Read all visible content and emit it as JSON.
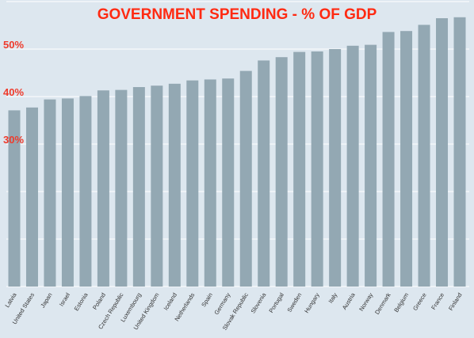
{
  "chart_data": {
    "type": "bar",
    "title": "GOVERNMENT SPENDING - % OF GDP",
    "xlabel": "",
    "ylabel": "",
    "categories": [
      "Latvia",
      "United States",
      "Japan",
      "Israel",
      "Estonia",
      "Poland",
      "Czech Republic",
      "Luxembourg",
      "United Kingdom",
      "Iceland",
      "Netherlands",
      "Spain",
      "Germany",
      "Slovak Republic",
      "Slovenia",
      "Portugal",
      "Sweden",
      "Hungary",
      "Italy",
      "Austria",
      "Norway",
      "Denmark",
      "Belgium",
      "Greece",
      "France",
      "Finland"
    ],
    "values": [
      37.1,
      37.7,
      39.4,
      39.6,
      40.1,
      41.3,
      41.4,
      42.0,
      42.3,
      42.7,
      43.4,
      43.6,
      43.8,
      45.4,
      47.6,
      48.3,
      49.4,
      49.5,
      50.0,
      50.7,
      50.9,
      53.6,
      53.8,
      55.1,
      56.5,
      56.7
    ],
    "yticks": [
      {
        "value": 50,
        "label": "50%"
      },
      {
        "value": 40,
        "label": "40%"
      },
      {
        "value": 30,
        "label": "30%"
      }
    ],
    "ylim": [
      0,
      60
    ],
    "grid": true,
    "colors": {
      "background": "#dde7ef",
      "bar": "#93a8b3",
      "gridline": "#ffffff",
      "title": "#ff2a12",
      "ytick": "#ef3b2c"
    }
  }
}
